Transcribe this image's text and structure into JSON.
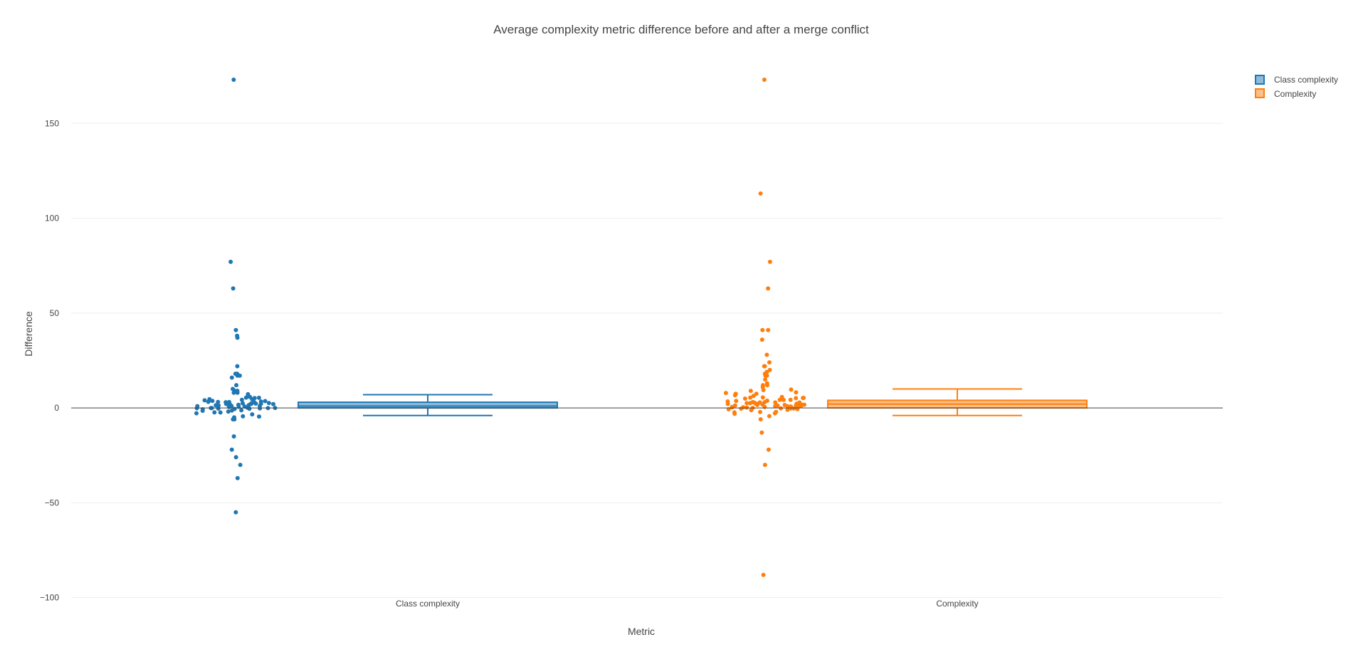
{
  "chart_data": {
    "type": "box",
    "title": "Average complexity metric difference before and after a merge conflict",
    "xlabel": "Metric",
    "ylabel": "Difference",
    "categories": [
      "Class complexity",
      "Complexity"
    ],
    "ylim": [
      -105,
      185
    ],
    "yticks": [
      {
        "value": 150,
        "label": "150"
      },
      {
        "value": 100,
        "label": "100"
      },
      {
        "value": 50,
        "label": "50"
      },
      {
        "value": 0,
        "label": "0"
      },
      {
        "value": -50,
        "label": "−50"
      },
      {
        "value": -100,
        "label": "−100"
      }
    ],
    "grid": true,
    "zeroline": true,
    "boxpoints": "all",
    "legend_position": "top-right",
    "series": [
      {
        "name": "Class complexity",
        "color": "#1f77b4",
        "fill": "#8fbbda",
        "category": "Class complexity",
        "box": {
          "lowerfence": -4,
          "q1": 0,
          "median": 1,
          "q3": 3,
          "upperfence": 7
        },
        "outliers": [
          173,
          77,
          63,
          41,
          38,
          37,
          22,
          18,
          18,
          17,
          17,
          16,
          12,
          10,
          9,
          9,
          8,
          8,
          -5,
          -6,
          -6,
          -15,
          -22,
          -26,
          -30,
          -37,
          -55
        ],
        "points": [
          7,
          6,
          6,
          5,
          5,
          5,
          5,
          4,
          4,
          4,
          4,
          3,
          3,
          3,
          3,
          3,
          3,
          3,
          2,
          2,
          2,
          2,
          2,
          2,
          2,
          2,
          2,
          2,
          1,
          1,
          1,
          1,
          1,
          1,
          1,
          1,
          1,
          1,
          1,
          1,
          0,
          0,
          0,
          0,
          0,
          0,
          0,
          0,
          0,
          0,
          -1,
          -1,
          -1,
          -1,
          -2,
          -2,
          -2,
          -3,
          -3,
          -4,
          -4
        ]
      },
      {
        "name": "Complexity",
        "color": "#ff7f0e",
        "fill": "#ffbf86",
        "category": "Complexity",
        "box": {
          "lowerfence": -4,
          "q1": 0,
          "median": 2,
          "q3": 4,
          "upperfence": 10
        },
        "outliers": [
          173,
          113,
          77,
          63,
          41,
          41,
          36,
          28,
          24,
          22,
          22,
          20,
          19,
          18,
          17,
          17,
          15,
          13,
          12,
          12,
          11,
          -6,
          -13,
          -22,
          -30,
          -88
        ],
        "points": [
          10,
          9,
          9,
          8,
          8,
          7,
          7,
          7,
          6,
          6,
          6,
          5,
          5,
          5,
          5,
          5,
          4,
          4,
          4,
          4,
          4,
          4,
          3,
          3,
          3,
          3,
          3,
          3,
          3,
          3,
          2,
          2,
          2,
          2,
          2,
          2,
          2,
          2,
          2,
          2,
          2,
          1,
          1,
          1,
          1,
          1,
          1,
          1,
          1,
          1,
          1,
          0,
          0,
          0,
          0,
          0,
          0,
          0,
          0,
          0,
          -1,
          -1,
          -1,
          -1,
          -2,
          -2,
          -2,
          -3,
          -3,
          -4
        ]
      }
    ]
  }
}
